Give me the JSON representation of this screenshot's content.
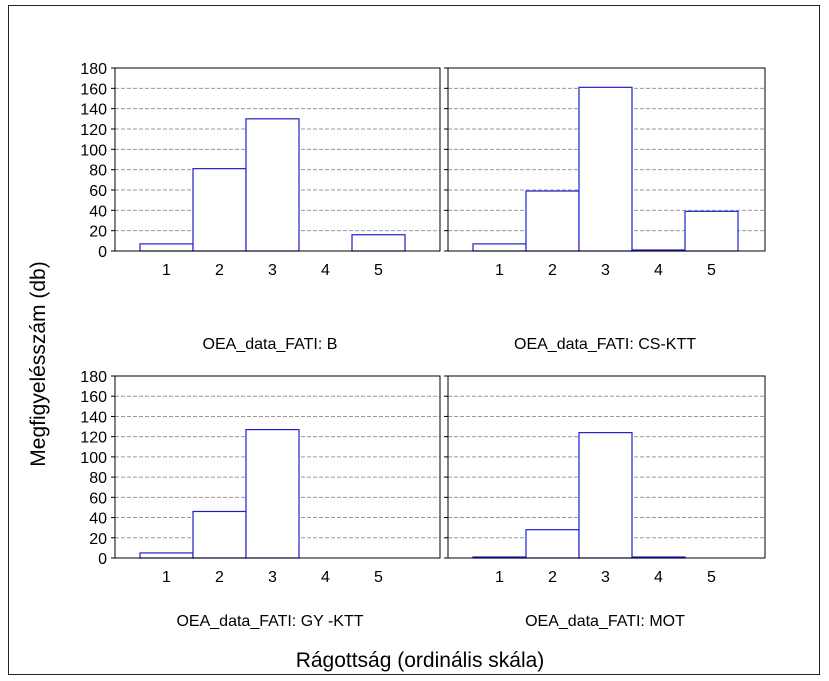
{
  "figure": {
    "ylabel": "Megfigyelésszám (db)",
    "xlabel": "Rágottság (ordinális skála)"
  },
  "colors": {
    "bar_stroke": "#1f1fd1",
    "bar_fill": "#ffffff",
    "grid": "#9a9a9a",
    "axis": "#000000"
  },
  "chart_data": [
    {
      "type": "bar",
      "title": "OEA_data_FATI: B",
      "categories": [
        "1",
        "2",
        "3",
        "4",
        "5"
      ],
      "values": [
        7,
        81,
        130,
        0,
        16
      ],
      "ylim": [
        0,
        180
      ],
      "yticks": [
        0,
        20,
        40,
        60,
        80,
        100,
        120,
        140,
        160,
        180
      ],
      "grid": true
    },
    {
      "type": "bar",
      "title": "OEA_data_FATI: CS-KTT",
      "categories": [
        "1",
        "2",
        "3",
        "4",
        "5"
      ],
      "values": [
        7,
        59,
        161,
        1,
        39
      ],
      "ylim": [
        0,
        180
      ],
      "yticks": [
        0,
        20,
        40,
        60,
        80,
        100,
        120,
        140,
        160,
        180
      ],
      "grid": true
    },
    {
      "type": "bar",
      "title": "OEA_data_FATI: GY -KTT",
      "categories": [
        "1",
        "2",
        "3",
        "4",
        "5"
      ],
      "values": [
        5,
        46,
        127,
        0,
        0
      ],
      "ylim": [
        0,
        180
      ],
      "yticks": [
        0,
        20,
        40,
        60,
        80,
        100,
        120,
        140,
        160,
        180
      ],
      "grid": true
    },
    {
      "type": "bar",
      "title": "OEA_data_FATI: MOT",
      "categories": [
        "1",
        "2",
        "3",
        "4",
        "5"
      ],
      "values": [
        1,
        28,
        124,
        1,
        0
      ],
      "ylim": [
        0,
        180
      ],
      "yticks": [
        0,
        20,
        40,
        60,
        80,
        100,
        120,
        140,
        160,
        180
      ],
      "grid": true
    }
  ]
}
